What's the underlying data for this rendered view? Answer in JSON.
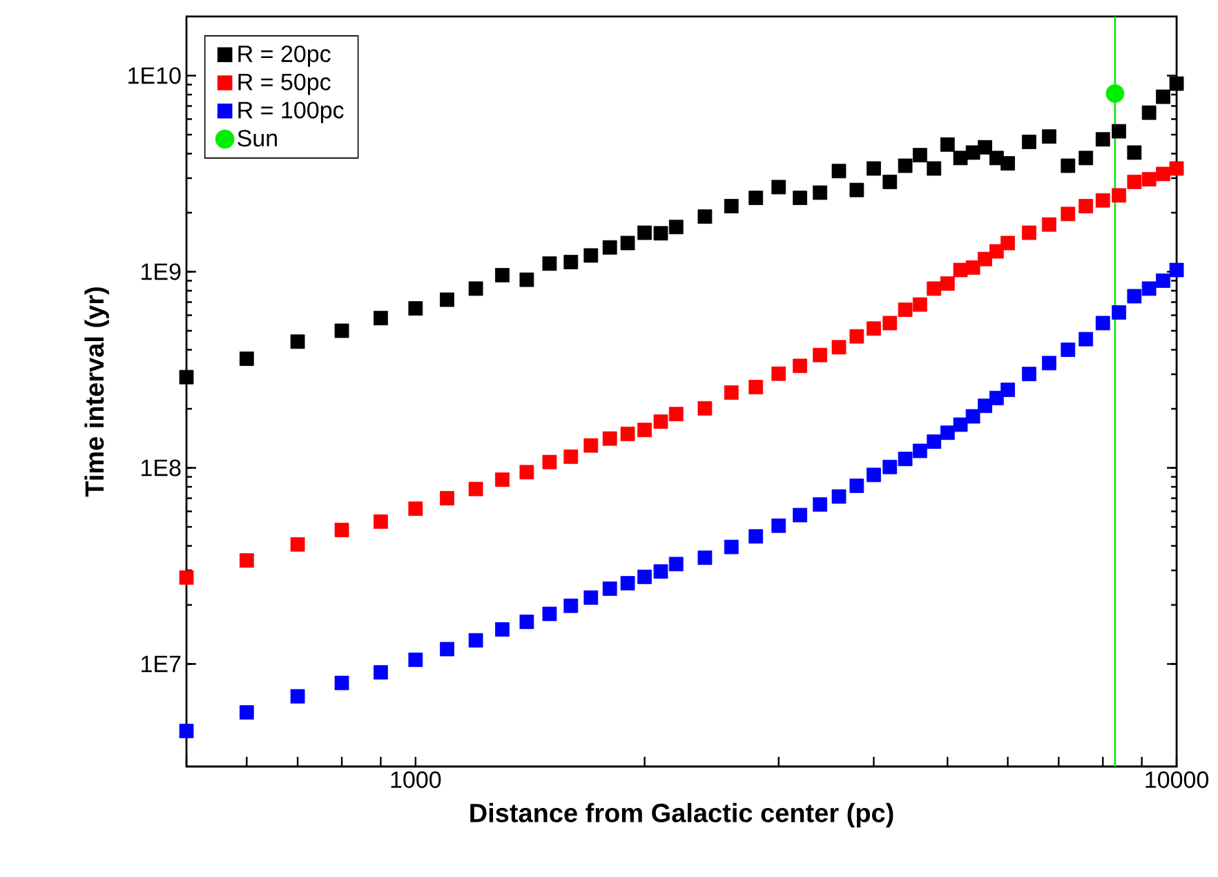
{
  "chart_data": {
    "type": "scatter",
    "xlabel": "Distance from Galactic center (pc)",
    "ylabel": "Time interval (yr)",
    "log": "xy",
    "xlim": [
      500,
      10000
    ],
    "ylim": [
      3000000,
      20000000000
    ],
    "xticks": [
      {
        "value": 500,
        "label": null
      },
      {
        "value": 600,
        "label": null
      },
      {
        "value": 700,
        "label": null
      },
      {
        "value": 800,
        "label": null
      },
      {
        "value": 900,
        "label": null
      },
      1000,
      {
        "value": 2000,
        "label": null
      },
      {
        "value": 3000,
        "label": null
      },
      {
        "value": 4000,
        "label": null
      },
      {
        "value": 5000,
        "label": null
      },
      {
        "value": 6000,
        "label": null
      },
      {
        "value": 7000,
        "label": null
      },
      {
        "value": 8000,
        "label": null
      },
      {
        "value": 9000,
        "label": null
      },
      10000
    ],
    "yticks": [
      {
        "value": 10000000,
        "label": "1E7"
      },
      {
        "value": 100000000,
        "label": "1E8"
      },
      {
        "value": 1000000000,
        "label": "1E9"
      },
      {
        "value": 10000000000,
        "label": "1E10"
      }
    ],
    "grid": false,
    "legend": "top left",
    "marker": "square",
    "x": [
      500,
      600,
      700,
      800,
      900,
      1000,
      1100,
      1200,
      1300,
      1400,
      1500,
      1600,
      1700,
      1800,
      1900,
      2000,
      2100,
      2200,
      2400,
      2600,
      2800,
      3000,
      3200,
      3400,
      3600,
      3800,
      4000,
      4200,
      4400,
      4600,
      4800,
      5000,
      5200,
      5400,
      5600,
      5800,
      6000,
      6400,
      6800,
      7200,
      7600,
      8000,
      8400,
      8800,
      9200,
      9600,
      10000
    ],
    "series": [
      {
        "name": "R = 20pc",
        "color": "#000000",
        "values": [
          290000000.0,
          360000000.0,
          440000000.0,
          500000000.0,
          580000000.0,
          650000000.0,
          720000000.0,
          820000000.0,
          960000000.0,
          910000000.0,
          1100000000.0,
          1120000000.0,
          1210000000.0,
          1330000000.0,
          1400000000.0,
          1580000000.0,
          1570000000.0,
          1690000000.0,
          1910000000.0,
          2160000000.0,
          2380000000.0,
          2700000000.0,
          2380000000.0,
          2530000000.0,
          3260000000.0,
          2610000000.0,
          3360000000.0,
          2870000000.0,
          3470000000.0,
          3930000000.0,
          3360000000.0,
          4450000000.0,
          3800000000.0,
          4050000000.0,
          4310000000.0,
          3800000000.0,
          3570000000.0,
          4590000000.0,
          4890000000.0,
          3470000000.0,
          3800000000.0,
          4730000000.0,
          5200000000.0,
          4050000000.0,
          6470000000.0,
          7800000000.0,
          9100000000.0
        ]
      },
      {
        "name": "R = 50pc",
        "color": "#ff0000",
        "values": [
          27600000.0,
          33700000.0,
          40700000.0,
          48200000.0,
          53200000.0,
          61900000.0,
          70000000.0,
          78000000.0,
          87000000.0,
          95000000.0,
          107000000.0,
          114000000.0,
          130000000.0,
          141000000.0,
          149000000.0,
          156000000.0,
          172000000.0,
          188000000.0,
          201000000.0,
          242000000.0,
          258000000.0,
          302000000.0,
          331000000.0,
          376000000.0,
          412000000.0,
          468000000.0,
          513000000.0,
          547000000.0,
          640000000.0,
          680000000.0,
          820000000.0,
          870000000.0,
          1020000000.0,
          1050000000.0,
          1160000000.0,
          1270000000.0,
          1400000000.0,
          1580000000.0,
          1740000000.0,
          1970000000.0,
          2160000000.0,
          2310000000.0,
          2450000000.0,
          2870000000.0,
          2960000000.0,
          3150000000.0,
          3360000000.0
        ]
      },
      {
        "name": "R = 100pc",
        "color": "#0000ff",
        "values": [
          4550000.0,
          5660000.0,
          6840000.0,
          8000000.0,
          9060000.0,
          10500000.0,
          11900000.0,
          13200000.0,
          15000000.0,
          16400000.0,
          18000000.0,
          19800000.0,
          21800000.0,
          24200000.0,
          25800000.0,
          27800000.0,
          29600000.0,
          32300000.0,
          34800000.0,
          39500000.0,
          44700000.0,
          50700000.0,
          57400000.0,
          65000000.0,
          71400000.0,
          81000000.0,
          92000000.0,
          101000000.0,
          111000000.0,
          122000000.0,
          136000000.0,
          151000000.0,
          166000000.0,
          183000000.0,
          207000000.0,
          227000000.0,
          250000000.0,
          301000000.0,
          342000000.0,
          400000000.0,
          453000000.0,
          547000000.0,
          620000000.0,
          750000000.0,
          820000000.0,
          900000000.0,
          1020000000.0
        ]
      },
      {
        "name": "Sun",
        "color": "#00ee00",
        "marker": "circle",
        "x": [
          8300
        ],
        "values": [
          8100000000.0
        ]
      }
    ],
    "ref_lines": [
      {
        "axis": "x",
        "value": 8300,
        "color": "#00ee00"
      }
    ]
  }
}
